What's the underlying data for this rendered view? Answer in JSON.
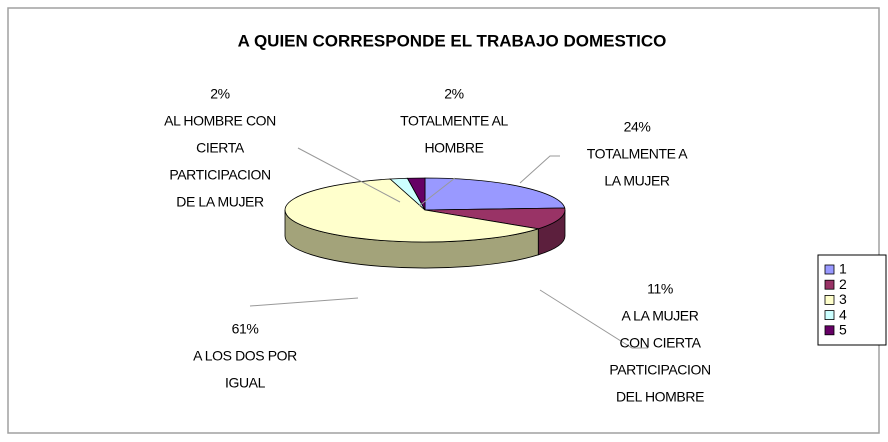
{
  "chart_data": {
    "type": "pie3d",
    "title": "A QUIEN CORRESPONDE EL TRABAJO DOMESTICO",
    "categories": [
      "1",
      "2",
      "3",
      "4",
      "5"
    ],
    "values": [
      24,
      11,
      61,
      2,
      2
    ],
    "value_labels": [
      "24%",
      "11%",
      "61%",
      "2%",
      "2%"
    ],
    "labels": [
      [
        "TOTALMENTE A",
        "LA MUJER"
      ],
      [
        "A LA MUJER",
        "CON CIERTA",
        "PARTICIPACION",
        "DEL HOMBRE"
      ],
      [
        "A LOS DOS POR",
        "IGUAL"
      ],
      [
        "AL HOMBRE CON",
        "CIERTA",
        "PARTICIPACION",
        "DE LA MUJER"
      ],
      [
        "TOTALMENTE AL",
        "HOMBRE"
      ]
    ],
    "colors": [
      "#9999ff",
      "#993366",
      "#ffffcc",
      "#ccffff",
      "#660066"
    ],
    "side_colors": [
      "#6b6bb3",
      "#5c1f3d",
      "#a3a37a",
      "#8fb3b3",
      "#3d003d"
    ],
    "legend": "right"
  }
}
